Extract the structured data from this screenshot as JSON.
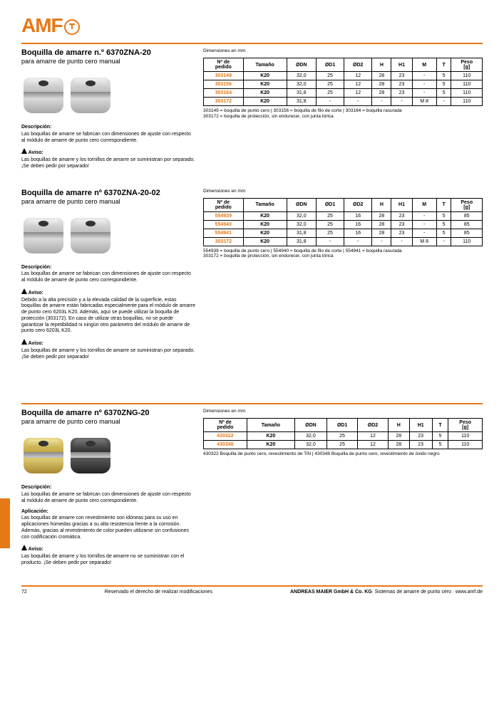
{
  "logo": "AMF",
  "sections": [
    {
      "title": "Boquilla de amarre n.º 6370ZNA-20",
      "subtitle": "para amarre de punto cero manual",
      "dimensions_label": "Dimensiones en mm",
      "desc": {
        "head": "Descripción:",
        "text": "Las boquillas de amarre se fabrican con dimensiones de ajuste con respecto al módulo de amarre de punto cero correspondiente."
      },
      "note": {
        "head": "Aviso:",
        "text": "Las boquillas de amarre y los tornillos de amarre se suministran por separado. ¡Se deben pedir por separado!"
      },
      "table": {
        "cols": [
          "Nº de pedido",
          "Tamaño",
          "ØDN",
          "ØD1",
          "ØD2",
          "H",
          "H1",
          "M",
          "T",
          "Peso [g]"
        ],
        "rows": [
          [
            "303149",
            "K20",
            "32,0",
            "25",
            "12",
            "28",
            "23",
            "-",
            "5",
            "110"
          ],
          [
            "303156",
            "K20",
            "32,0",
            "25",
            "12",
            "28",
            "23",
            "-",
            "5",
            "110"
          ],
          [
            "303164",
            "K20",
            "31,8",
            "25",
            "12",
            "28",
            "23",
            "-",
            "5",
            "110"
          ],
          [
            "303172",
            "K20",
            "31,8",
            "-",
            "-",
            "-",
            "-",
            "M 8",
            "-",
            "110"
          ]
        ],
        "desc": "303149 = boquilla de punto cero | 303156 = boquilla de filo de corte | 303164 = boquilla rasurada\n303172 = boquilla de protección, sin endurecer, con junta tórica"
      },
      "img_variant": "steel"
    },
    {
      "title": "Boquilla de amarre nº 6370ZNA-20-02",
      "subtitle": "para amarre de punto cero manual",
      "dimensions_label": "Dimensiones en mm",
      "desc": {
        "head": "Descripción:",
        "text": "Las boquillas de amarre se fabrican con dimensiones de ajuste con respecto al módulo de amarre de punto cero correspondiente."
      },
      "note": {
        "head": "Aviso:",
        "text": "Las boquillas de amarre y los tornillos de amarre se suministran por separado. ¡Se deben pedir por separado!"
      },
      "note2": {
        "head": "Aviso:",
        "text": "Debido a la alta precisión y a la elevada calidad de la superficie, estas boquillas de amarre están fabricadas especialmente para el módulo de amarre de punto cero 6203L K20. Además, aquí se puede utilizar la boquilla de protección (303172). En caso de utilizar otras boquillas, no se puede garantizar la repetibilidad ni ningún otro parámetro del módulo de amarre de punto cero 6203L K20."
      },
      "table": {
        "cols": [
          "Nº de pedido",
          "Tamaño",
          "ØDN",
          "ØD1",
          "ØD2",
          "H",
          "H1",
          "M",
          "T",
          "Peso [g]"
        ],
        "rows": [
          [
            "554939",
            "K20",
            "32,0",
            "25",
            "16",
            "28",
            "23",
            "-",
            "5",
            "85"
          ],
          [
            "554940",
            "K20",
            "32,0",
            "25",
            "16",
            "28",
            "23",
            "-",
            "5",
            "85"
          ],
          [
            "554941",
            "K20",
            "31,8",
            "25",
            "16",
            "28",
            "23",
            "-",
            "5",
            "85"
          ],
          [
            "303172",
            "K20",
            "31,8",
            "-",
            "-",
            "-",
            "-",
            "M 8",
            "-",
            "110"
          ]
        ],
        "desc": "554939 = boquilla de punto cero | 554940 = boquilla de filo de corte | 554941 = boquilla rasurada\n303172 = boquilla de protección, sin endurecer, con junta tórica"
      },
      "img_variant": "steel"
    },
    {
      "title": "Boquilla de amarre nº 6370ZNG-20",
      "subtitle": "para amarre de punto cero manual",
      "dimensions_label": "Dimensiones en mm",
      "desc": {
        "head": "Descripción:",
        "text": "Las boquillas de amarre se fabrican con dimensiones de ajuste con respecto al módulo de amarre de punto cero correspondiente."
      },
      "note": {
        "head": "Aviso:",
        "text": "Las boquillas de amarre y los tornillos de amarre no se suministran con el producto. ¡Se deben pedir por separado!"
      },
      "apply": {
        "head": "Aplicación:",
        "text": "Las boquillas de amarre con revestimiento son idóneas para su uso en aplicaciones húmedas gracias a su alta resistencia frente a la corrosión. Además, gracias al revestimiento de color pueden utilizarse sin confusiones con codificación cromática."
      },
      "table": {
        "cols": [
          "Nº de pedido",
          "Tamaño",
          "ØDN",
          "ØD1",
          "ØD2",
          "H",
          "H1",
          "T",
          "Peso [g]"
        ],
        "rows": [
          [
            "430322",
            "K20",
            "32,0",
            "25",
            "12",
            "28",
            "23",
            "5",
            "110"
          ],
          [
            "430348",
            "K20",
            "32,0",
            "25",
            "12",
            "28",
            "23",
            "5",
            "110"
          ]
        ],
        "desc": "430322 Boquilla de punto cero, revestimiento de TiN | 430348 Boquilla de punto cero, revestimiento de óxido negro"
      },
      "img_variant": "coated"
    }
  ],
  "footer": {
    "page": "72",
    "text": "Reservado el derecho de realizar modificaciones",
    "company": "ANDREAS MAIER GmbH & Co. KG",
    "site": "∙ Sistemas de amarre de punto cero ∙ www.amf.de"
  }
}
